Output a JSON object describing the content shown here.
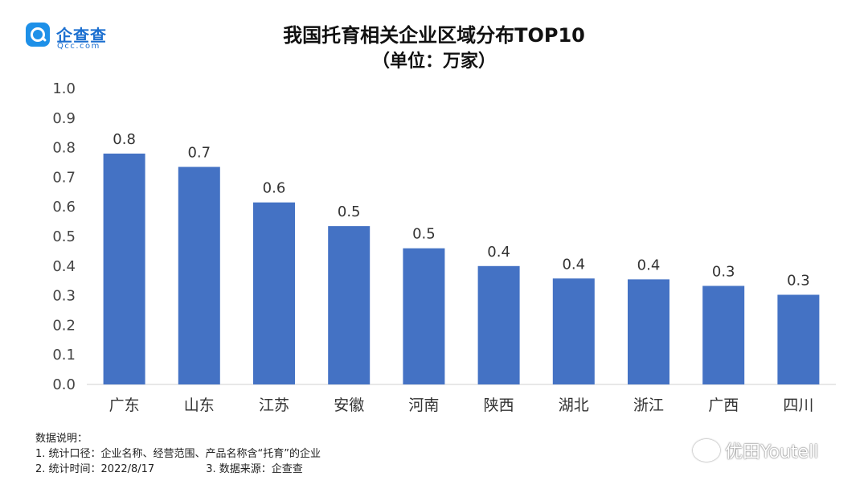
{
  "brand": {
    "name": "企查查",
    "domain": "Qcc.com"
  },
  "chart_data": {
    "type": "bar",
    "title": "我国托育相关企业区域分布TOP10",
    "subtitle": "（单位：万家）",
    "categories": [
      "广东",
      "山东",
      "江苏",
      "安徽",
      "河南",
      "陕西",
      "湖北",
      "浙江",
      "广西",
      "四川"
    ],
    "values": [
      0.78,
      0.735,
      0.615,
      0.535,
      0.46,
      0.4,
      0.358,
      0.355,
      0.333,
      0.303
    ],
    "data_labels": [
      "0.8",
      "0.7",
      "0.6",
      "0.5",
      "0.5",
      "0.4",
      "0.4",
      "0.4",
      "0.3",
      "0.3"
    ],
    "y_ticks": [
      "0.0",
      "0.1",
      "0.2",
      "0.3",
      "0.4",
      "0.5",
      "0.6",
      "0.7",
      "0.8",
      "0.9",
      "1.0"
    ],
    "ylim": [
      0,
      1.0
    ],
    "grid": false,
    "bar_color": "#4472c4"
  },
  "notes": {
    "heading": "数据说明：",
    "item1": "1. 统计口径：企业名称、经营范围、产品名称含“托育”的企业",
    "item2": "2. 统计时间：2022/8/17",
    "item3": "3. 数据来源：企查查"
  },
  "watermark": "优田Youtell"
}
